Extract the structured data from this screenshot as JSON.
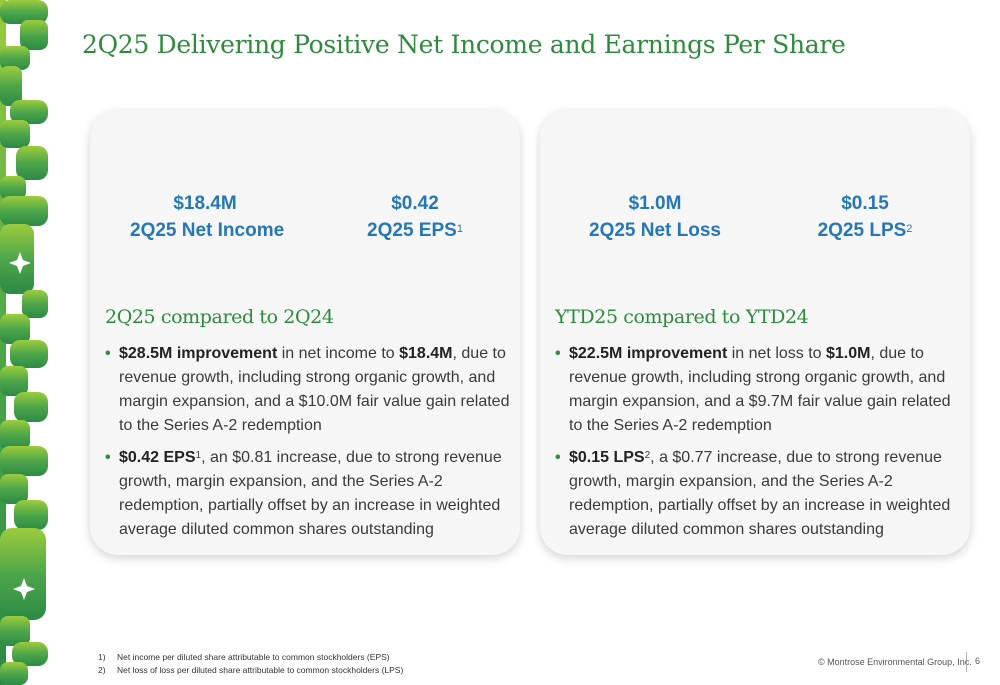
{
  "title": "2Q25 Delivering Positive Net Income and Earnings Per Share",
  "colors": {
    "brand_green": "#2e8a3c",
    "metric_blue": "#2577b8"
  },
  "cards": [
    {
      "metrics": [
        {
          "value": "$18.4M",
          "label": "2Q25 Net Income",
          "sup": ""
        },
        {
          "value": "$0.42",
          "label": "2Q25 EPS",
          "sup": "1"
        }
      ],
      "subhead": "2Q25 compared to 2Q24",
      "bullets": [
        {
          "bold": "$28.5M improvement",
          "sup": "",
          "text": " in net income to ",
          "bold2": "$18.4M",
          "text2": ", due to revenue growth, including strong organic growth, and margin expansion, and a $10.0M fair value gain related to the Series A-2 redemption"
        },
        {
          "bold": "$0.42 EPS",
          "sup": "1",
          "text": ", an $0.81 increase, due to strong revenue growth, margin expansion, and the Series A-2 redemption, partially offset by an increase in weighted average diluted common shares outstanding",
          "bold2": "",
          "text2": ""
        }
      ]
    },
    {
      "metrics": [
        {
          "value": "$1.0M",
          "label": "2Q25 Net Loss",
          "sup": ""
        },
        {
          "value": "$0.15",
          "label": "2Q25 LPS",
          "sup": "2"
        }
      ],
      "subhead": "YTD25 compared to YTD24",
      "bullets": [
        {
          "bold": "$22.5M improvement",
          "sup": "",
          "text": " in net loss to ",
          "bold2": "$1.0M",
          "text2": ", due to revenue growth, including strong organic growth, and margin expansion, and a $9.7M fair value gain related to the Series A-2 redemption"
        },
        {
          "bold": "$0.15 LPS",
          "sup": "2",
          "text": ", a $0.77 increase, due to strong revenue growth, margin expansion, and the Series A-2 redemption, partially offset by an increase in weighted average diluted common shares outstanding",
          "bold2": "",
          "text2": ""
        }
      ]
    }
  ],
  "footnotes": [
    {
      "num": "1)",
      "text": "Net income per diluted share attributable to common stockholders (EPS)"
    },
    {
      "num": "2)",
      "text": "Net loss of loss per diluted share attributable to common stockholders (LPS)"
    }
  ],
  "copyright": "© Montrose Environmental Group, Inc.",
  "page_number": "6"
}
